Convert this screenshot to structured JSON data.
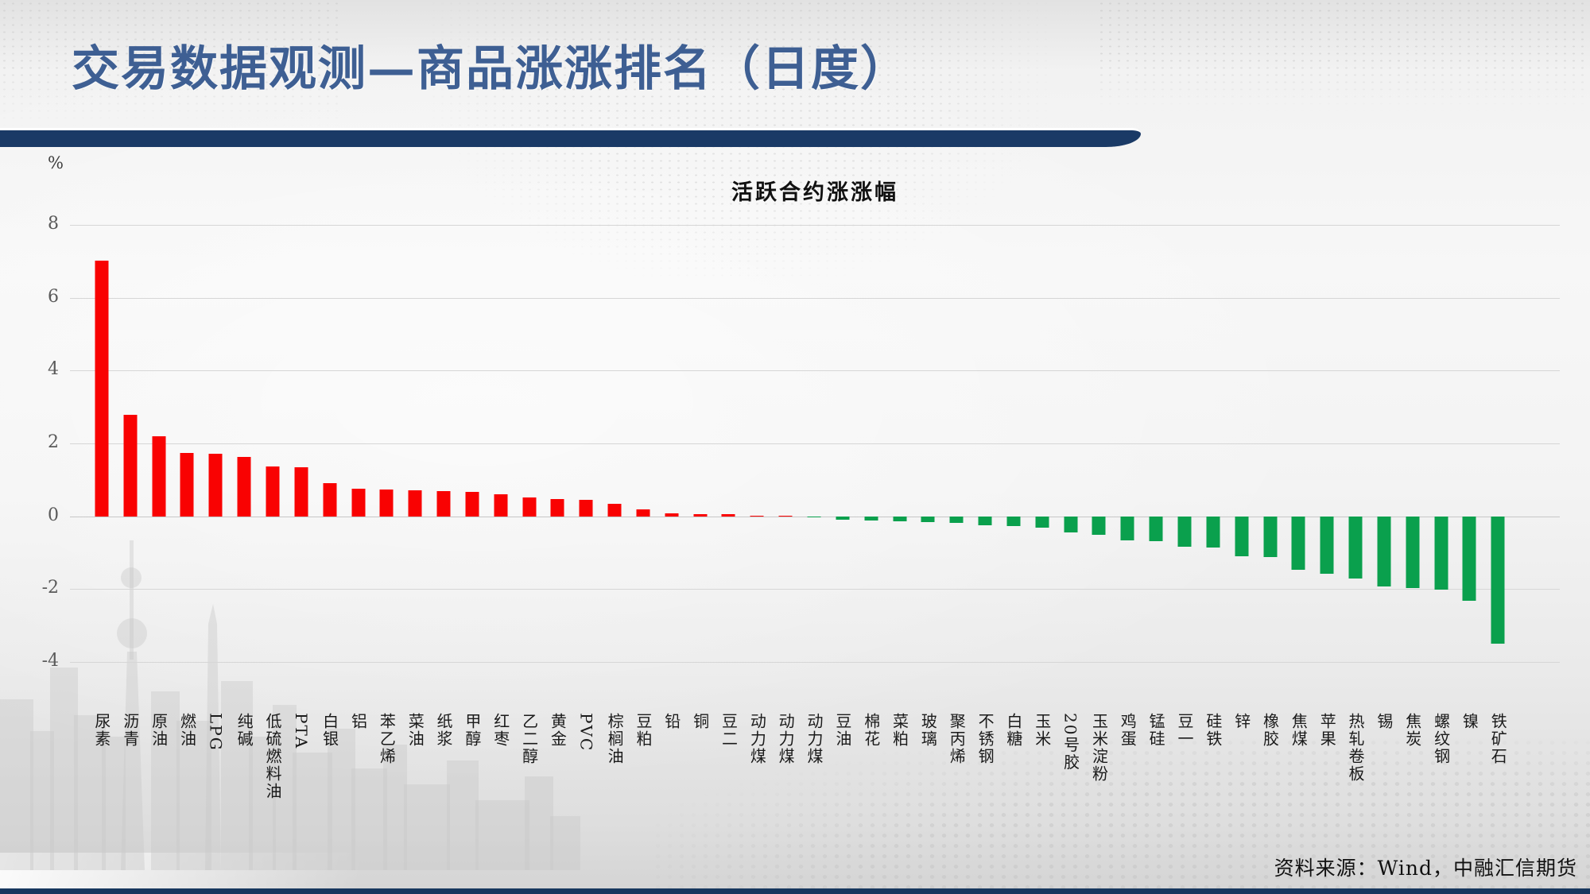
{
  "header": {
    "title": "交易数据观测—商品涨涨排名（日度）"
  },
  "chart_data": {
    "type": "bar",
    "title": "活跃合约涨涨幅",
    "unit_label": "%",
    "ylabel": "%",
    "ylim": [
      -4,
      8
    ],
    "yticks": [
      8,
      6,
      4,
      2,
      0,
      -2,
      -4
    ],
    "grid": true,
    "legend_position": "none",
    "positive_color": "#f90202",
    "negative_color": "#0aa04d",
    "categories": [
      "尿素",
      "沥青",
      "原油",
      "燃油",
      "LPG",
      "纯碱",
      "低硫燃料油",
      "PTA",
      "白银",
      "铝",
      "苯乙烯",
      "菜油",
      "纸浆",
      "甲醇",
      "红枣",
      "乙二醇",
      "黄金",
      "PVC",
      "棕榈油",
      "豆粕",
      "铅",
      "铜",
      "豆二",
      "动力煤",
      "动力煤",
      "动力煤",
      "豆油",
      "棉花",
      "菜粕",
      "玻璃",
      "聚丙烯",
      "不锈钢",
      "白糖",
      "玉米",
      "20号胶",
      "玉米淀粉",
      "鸡蛋",
      "锰硅",
      "豆一",
      "硅铁",
      "锌",
      "橡胶",
      "焦煤",
      "苹果",
      "热轧卷板",
      "锡",
      "焦炭",
      "螺纹钢",
      "镍",
      "铁矿石"
    ],
    "values": [
      7.01,
      2.79,
      2.2,
      1.74,
      1.72,
      1.63,
      1.36,
      1.34,
      0.9,
      0.76,
      0.74,
      0.72,
      0.7,
      0.68,
      0.61,
      0.52,
      0.47,
      0.45,
      0.35,
      0.18,
      0.08,
      0.06,
      0.05,
      0.02,
      0.01,
      -0.01,
      -0.09,
      -0.11,
      -0.13,
      -0.16,
      -0.19,
      -0.25,
      -0.28,
      -0.32,
      -0.44,
      -0.5,
      -0.66,
      -0.68,
      -0.83,
      -0.86,
      -1.09,
      -1.13,
      -1.48,
      -1.57,
      -1.72,
      -1.92,
      -1.98,
      -2.02,
      -2.33,
      -3.5
    ]
  },
  "footer": {
    "source": "资料来源：Wind，中融汇信期货"
  }
}
